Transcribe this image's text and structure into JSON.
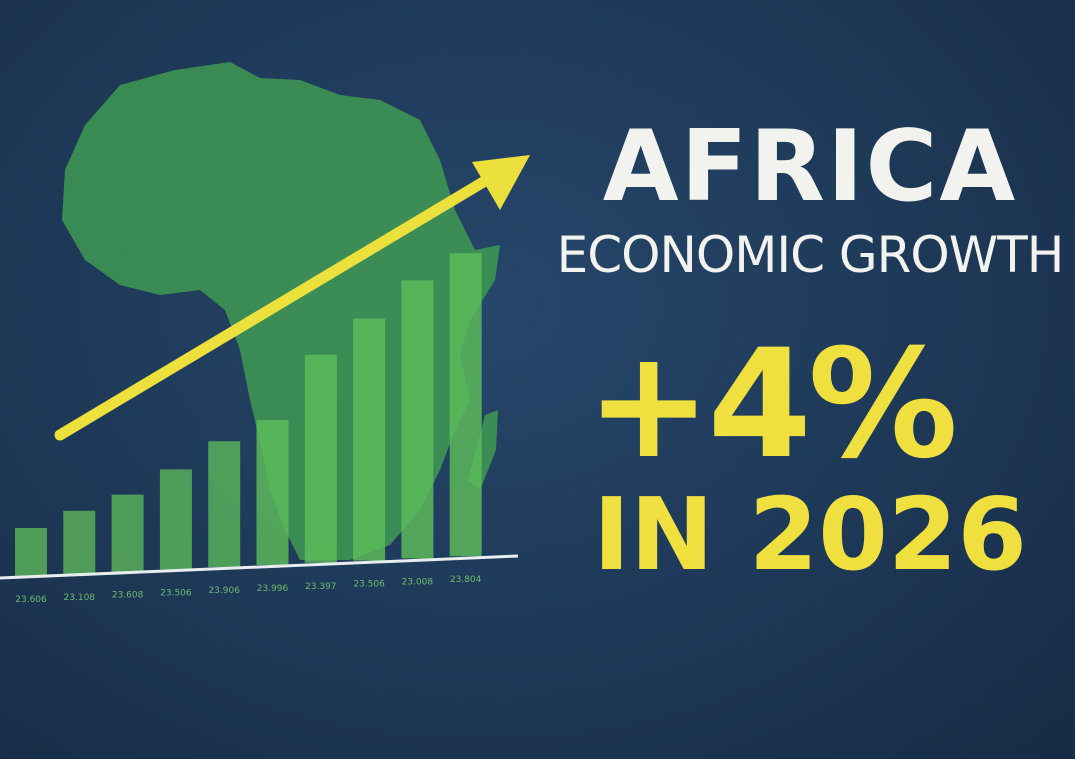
{
  "headline": {
    "title": "AFRICA",
    "subtitle": "ECONOMIC GROWTH",
    "figure": "+4%",
    "year_line": "IN 2026"
  },
  "colors": {
    "background": "#1e3858",
    "map": "#3f9a52",
    "bars": "#5fbf5a",
    "arrow": "#ece03c",
    "headline_white": "#f2f2ee",
    "headline_yellow": "#efe040"
  },
  "icons": {
    "map": "africa-map",
    "arrow": "trend-up-arrow"
  },
  "chart_data": {
    "type": "bar",
    "categories": [
      "23.606",
      "23.108",
      "23.608",
      "23.506",
      "23.906",
      "23.996",
      "23.397",
      "23.506",
      "23.008",
      "23.804"
    ],
    "values": [
      48,
      63,
      77,
      100,
      126,
      145,
      208,
      242,
      278,
      303
    ],
    "trend": "increasing",
    "grid": false
  }
}
